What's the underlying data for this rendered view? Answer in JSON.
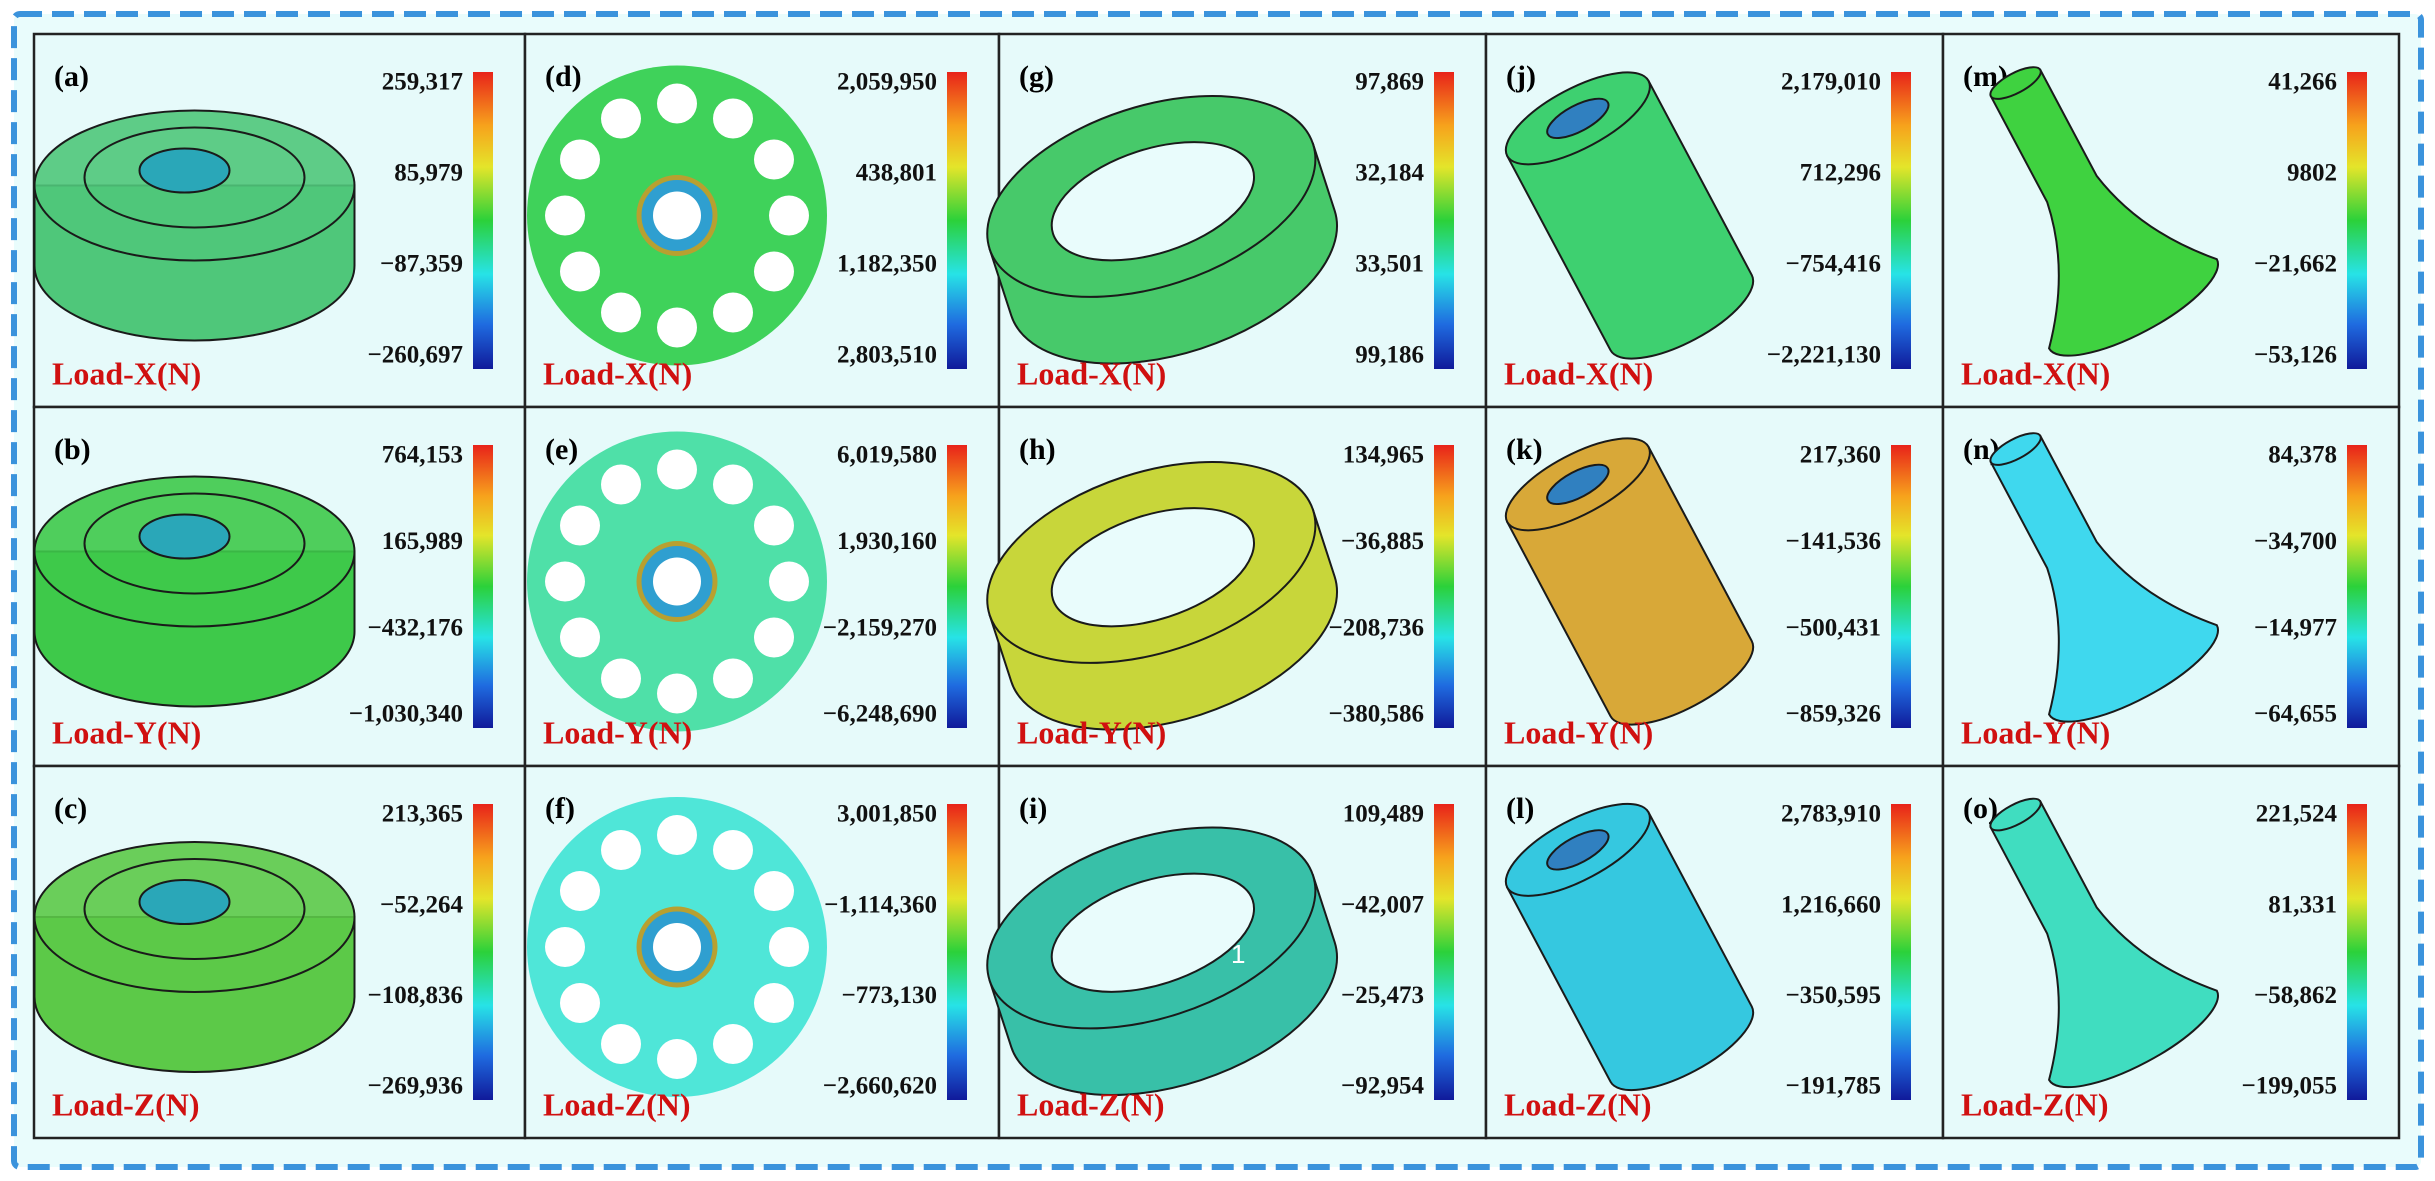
{
  "panels": [
    {
      "label": "(a)",
      "scale": [
        "259,317",
        "85,979",
        "−87,359",
        "−260,697"
      ],
      "load": "Load-X(N)"
    },
    {
      "label": "(b)",
      "scale": [
        "764,153",
        "165,989",
        "−432,176",
        "−1,030,340"
      ],
      "load": "Load-Y(N)"
    },
    {
      "label": "(c)",
      "scale": [
        "213,365",
        "−52,264",
        "−108,836",
        "−269,936"
      ],
      "load": "Load-Z(N)"
    },
    {
      "label": "(d)",
      "scale": [
        "2,059,950",
        "438,801",
        "1,182,350",
        "2,803,510"
      ],
      "load": "Load-X(N)"
    },
    {
      "label": "(e)",
      "scale": [
        "6,019,580",
        "1,930,160",
        "−2,159,270",
        "−6,248,690"
      ],
      "load": "Load-Y(N)"
    },
    {
      "label": "(f)",
      "scale": [
        "3,001,850",
        "−1,114,360",
        "−773,130",
        "−2,660,620"
      ],
      "load": "Load-Z(N)"
    },
    {
      "label": "(g)",
      "scale": [
        "97,869",
        "32,184",
        "33,501",
        "99,186"
      ],
      "load": "Load-X(N)"
    },
    {
      "label": "(h)",
      "scale": [
        "134,965",
        "−36,885",
        "−208,736",
        "−380,586"
      ],
      "load": "Load-Y(N)"
    },
    {
      "label": "(i)",
      "scale": [
        "109,489",
        "−42,007",
        "−25,473",
        "−92,954"
      ],
      "load": "Load-Z(N)",
      "annotation": "1"
    },
    {
      "label": "(j)",
      "scale": [
        "2,179,010",
        "712,296",
        "−754,416",
        "−2,221,130"
      ],
      "load": "Load-X(N)"
    },
    {
      "label": "(k)",
      "scale": [
        "217,360",
        "−141,536",
        "−500,431",
        "−859,326"
      ],
      "load": "Load-Y(N)"
    },
    {
      "label": "(l)",
      "scale": [
        "2,783,910",
        "1,216,660",
        "−350,595",
        "−191,785"
      ],
      "load": "Load-Z(N)"
    },
    {
      "label": "(m)",
      "scale": [
        "41,266",
        "9802",
        "−21,662",
        "−53,126"
      ],
      "load": "Load-X(N)"
    },
    {
      "label": "(n)",
      "scale": [
        "84,378",
        "−34,700",
        "−14,977",
        "−64,655"
      ],
      "load": "Load-Y(N)"
    },
    {
      "label": "(o)",
      "scale": [
        "221,524",
        "81,331",
        "−58,862",
        "−199,055"
      ],
      "load": "Load-Z(N)"
    }
  ]
}
